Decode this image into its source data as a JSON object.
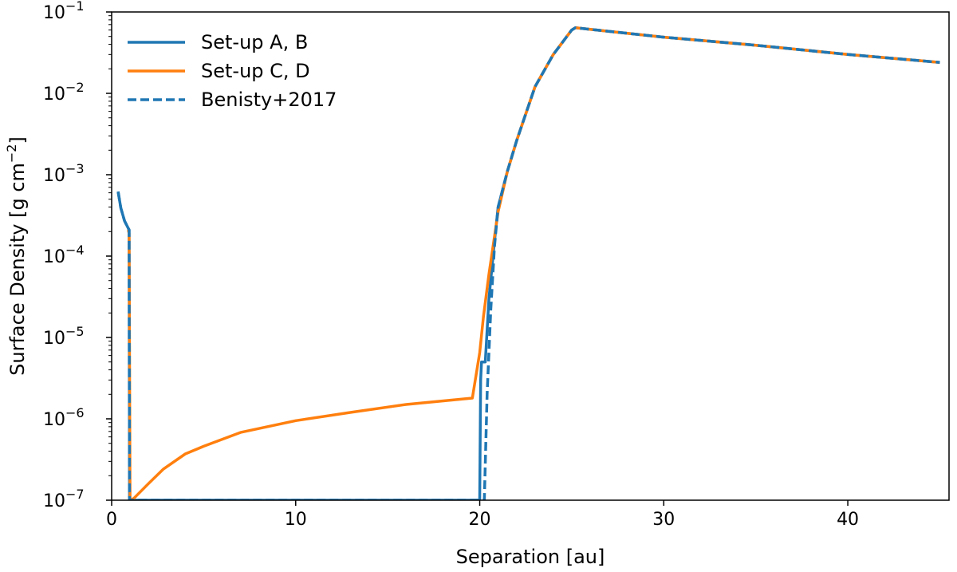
{
  "chart_data": {
    "type": "line",
    "xlabel": "Separation [au]",
    "ylabel": "Surface Density [g cm",
    "ylabel_exp": "−2",
    "ylabel_close": "]",
    "xlim": [
      0,
      45.5
    ],
    "ylim": [
      1e-07,
      0.1
    ],
    "yscale": "log",
    "grid": false,
    "legend_position": "top-left",
    "x_ticks": [
      0,
      10,
      20,
      30,
      40
    ],
    "x_tick_labels": [
      "0",
      "10",
      "20",
      "30",
      "40"
    ],
    "y_ticks": [
      1e-07,
      1e-06,
      1e-05,
      0.0001,
      0.001,
      0.01,
      0.1
    ],
    "y_tick_labels": [
      {
        "base": "10",
        "exp": "−7"
      },
      {
        "base": "10",
        "exp": "−6"
      },
      {
        "base": "10",
        "exp": "−5"
      },
      {
        "base": "10",
        "exp": "−4"
      },
      {
        "base": "10",
        "exp": "−3"
      },
      {
        "base": "10",
        "exp": "−2"
      },
      {
        "base": "10",
        "exp": "−1"
      }
    ],
    "series": [
      {
        "name": "Set-up A, B",
        "color": "#1f77b4",
        "style": "solid",
        "x": [
          0.35,
          0.5,
          0.7,
          0.9,
          0.95,
          0.97,
          20.0,
          20.05,
          20.1,
          20.3,
          20.5,
          20.8,
          21.0,
          21.5,
          22.0,
          23.0,
          24.0,
          25.0,
          25.2,
          30,
          35,
          40,
          45
        ],
        "y": [
          0.00062,
          0.00039,
          0.00027,
          0.00022,
          0.00021,
          1e-07,
          1e-07,
          3e-06,
          5e-06,
          5e-06,
          3e-05,
          0.00015,
          0.0004,
          0.0011,
          0.0026,
          0.012,
          0.03,
          0.06,
          0.064,
          0.049,
          0.039,
          0.03,
          0.024
        ]
      },
      {
        "name": "Set-up C, D",
        "color": "#ff7f0e",
        "style": "solid",
        "x": [
          0.9,
          0.95,
          1.0,
          1.2,
          2.0,
          2.8,
          4.0,
          5.0,
          7.0,
          10.0,
          13.0,
          16.0,
          19.6,
          20.0,
          20.2,
          20.5,
          21.0,
          21.5,
          22.0,
          23.0,
          24.0,
          25.0,
          25.2,
          30,
          35,
          40,
          45
        ],
        "y": [
          0.00021,
          0.00019,
          1e-07,
          1.05e-07,
          1.6e-07,
          2.4e-07,
          3.7e-07,
          4.6e-07,
          6.8e-07,
          9.5e-07,
          1.2e-06,
          1.5e-06,
          1.8e-06,
          6.5e-06,
          1.8e-05,
          6e-05,
          0.00035,
          0.0011,
          0.0026,
          0.012,
          0.03,
          0.06,
          0.064,
          0.049,
          0.039,
          0.03,
          0.024
        ]
      },
      {
        "name": "Benisty+2017",
        "color": "#1f77b4",
        "style": "dashed",
        "x": [
          0.35,
          0.5,
          0.7,
          0.9,
          0.95,
          0.97,
          20.25,
          20.4,
          20.6,
          20.8,
          21.0,
          21.5,
          22.0,
          23.0,
          24.0,
          25.0,
          25.2,
          30,
          35,
          40,
          45
        ],
        "y": [
          0.00062,
          0.00039,
          0.00027,
          0.00022,
          0.00021,
          1e-07,
          1e-07,
          2e-06,
          2.2e-05,
          0.00013,
          0.0004,
          0.0011,
          0.0026,
          0.012,
          0.03,
          0.06,
          0.064,
          0.049,
          0.039,
          0.03,
          0.024
        ]
      }
    ]
  }
}
